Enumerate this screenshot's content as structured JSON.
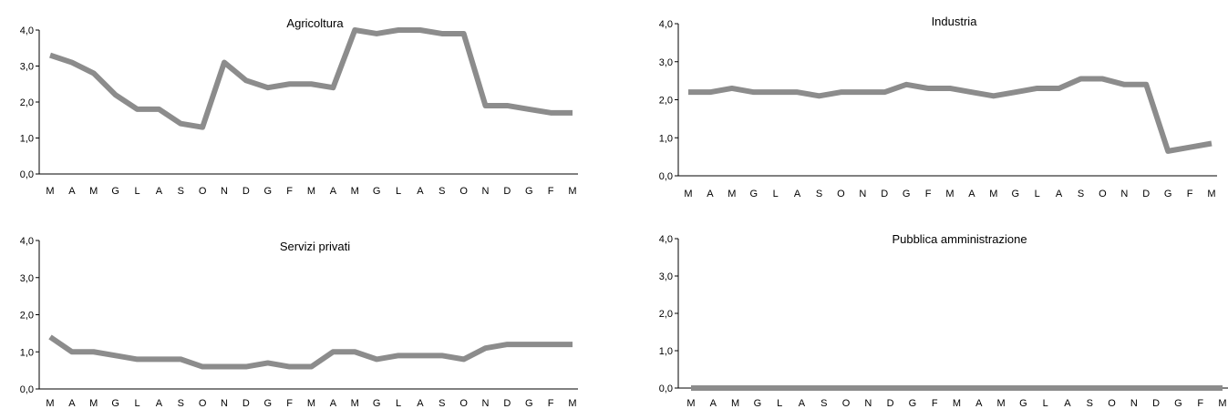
{
  "chart_data": [
    {
      "type": "line",
      "title": "Agricoltura",
      "categories": [
        "M",
        "A",
        "M",
        "G",
        "L",
        "A",
        "S",
        "O",
        "N",
        "D",
        "G",
        "F",
        "M",
        "A",
        "M",
        "G",
        "L",
        "A",
        "S",
        "O",
        "N",
        "D",
        "G",
        "F",
        "M"
      ],
      "ylim": [
        0,
        4
      ],
      "yticks": [
        "0,0",
        "1,0",
        "2,0",
        "3,0",
        "4,0"
      ],
      "series": [
        {
          "values": [
            3.3,
            3.1,
            2.8,
            2.2,
            1.8,
            1.8,
            1.4,
            1.3,
            3.1,
            2.6,
            2.4,
            2.5,
            2.5,
            2.4,
            4.0,
            3.9,
            4.0,
            4.0,
            3.9,
            3.9,
            1.9,
            1.9,
            1.8,
            1.7,
            1.7
          ],
          "color": "#8c8c8c"
        }
      ]
    },
    {
      "type": "line",
      "title": "Industria",
      "categories": [
        "M",
        "A",
        "M",
        "G",
        "L",
        "A",
        "S",
        "O",
        "N",
        "D",
        "G",
        "F",
        "M",
        "A",
        "M",
        "G",
        "L",
        "A",
        "S",
        "O",
        "N",
        "D",
        "G",
        "F",
        "M"
      ],
      "ylim": [
        0,
        4
      ],
      "yticks": [
        "0,0",
        "1,0",
        "2,0",
        "3,0",
        "4,0"
      ],
      "series": [
        {
          "values": [
            2.2,
            2.2,
            2.3,
            2.2,
            2.2,
            2.2,
            2.1,
            2.2,
            2.2,
            2.2,
            2.4,
            2.3,
            2.3,
            2.2,
            2.1,
            2.2,
            2.3,
            2.3,
            2.55,
            2.55,
            2.4,
            2.4,
            0.65,
            0.75,
            0.85
          ],
          "color": "#8c8c8c"
        }
      ]
    },
    {
      "type": "line",
      "title": "Servizi privati",
      "categories": [
        "M",
        "A",
        "M",
        "G",
        "L",
        "A",
        "S",
        "O",
        "N",
        "D",
        "G",
        "F",
        "M",
        "A",
        "M",
        "G",
        "L",
        "A",
        "S",
        "O",
        "N",
        "D",
        "G",
        "F",
        "M"
      ],
      "ylim": [
        0,
        4
      ],
      "yticks": [
        "0,0",
        "1,0",
        "2,0",
        "3,0",
        "4,0"
      ],
      "series": [
        {
          "values": [
            1.4,
            1.0,
            1.0,
            0.9,
            0.8,
            0.8,
            0.8,
            0.6,
            0.6,
            0.6,
            0.7,
            0.6,
            0.6,
            1.0,
            1.0,
            0.8,
            0.9,
            0.9,
            0.9,
            0.8,
            1.1,
            1.2,
            1.2,
            1.2,
            1.2
          ],
          "color": "#8c8c8c"
        }
      ]
    },
    {
      "type": "line",
      "title": "Pubblica amministrazione",
      "categories": [
        "M",
        "A",
        "M",
        "G",
        "L",
        "A",
        "S",
        "O",
        "N",
        "D",
        "G",
        "F",
        "M",
        "A",
        "M",
        "G",
        "L",
        "A",
        "S",
        "O",
        "N",
        "D",
        "G",
        "F",
        "M"
      ],
      "ylim": [
        0,
        4
      ],
      "yticks": [
        "0,0",
        "1,0",
        "2,0",
        "3,0",
        "4,0"
      ],
      "series": [
        {
          "values": [
            0,
            0,
            0,
            0,
            0,
            0,
            0,
            0,
            0,
            0,
            0,
            0,
            0,
            0,
            0,
            0,
            0,
            0,
            0,
            0,
            0,
            0,
            0,
            0,
            0
          ],
          "color": "#8c8c8c"
        }
      ]
    }
  ]
}
